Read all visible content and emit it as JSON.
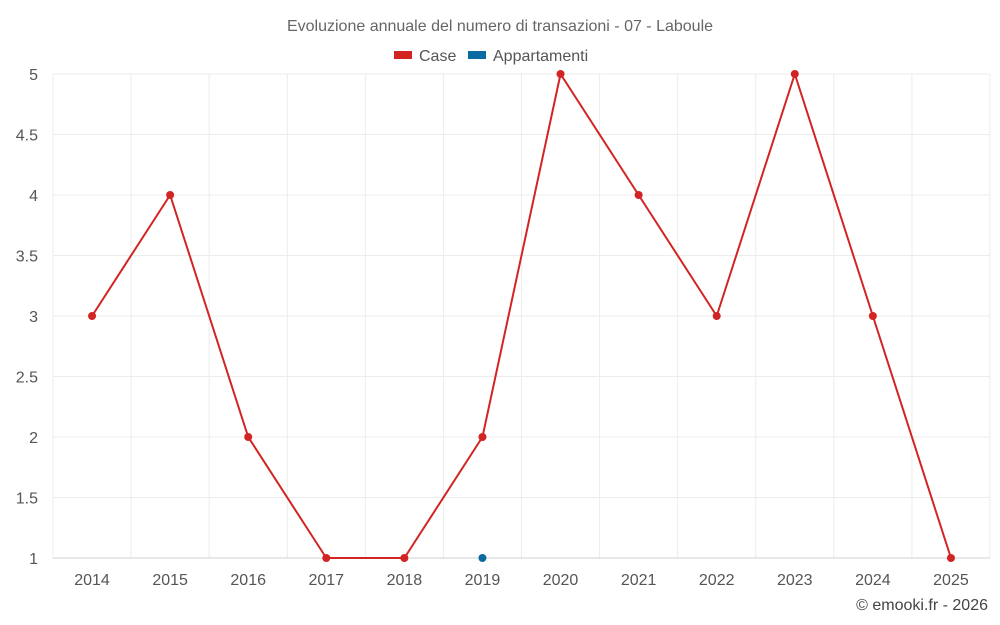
{
  "chart_data": {
    "type": "line",
    "title": "Evoluzione annuale del numero di transazioni - 07 - Laboule",
    "categories": [
      "2014",
      "2015",
      "2016",
      "2017",
      "2018",
      "2019",
      "2020",
      "2021",
      "2022",
      "2023",
      "2024",
      "2025"
    ],
    "series": [
      {
        "name": "Case",
        "color": "#d32424",
        "values": [
          3,
          4,
          2,
          1,
          1,
          2,
          5,
          4,
          3,
          5,
          3,
          1
        ]
      },
      {
        "name": "Appartamenti",
        "color": "#0b6aa2",
        "values": [
          null,
          null,
          null,
          null,
          null,
          1,
          null,
          null,
          null,
          null,
          null,
          null
        ]
      }
    ],
    "y_ticks": [
      "1",
      "1.5",
      "2",
      "2.5",
      "3",
      "3.5",
      "4",
      "4.5",
      "5"
    ],
    "ylim": [
      1,
      5
    ],
    "xlabel": "",
    "ylabel": "",
    "grid": true,
    "legend": "top-center"
  },
  "credit": "© emooki.fr - 2026"
}
